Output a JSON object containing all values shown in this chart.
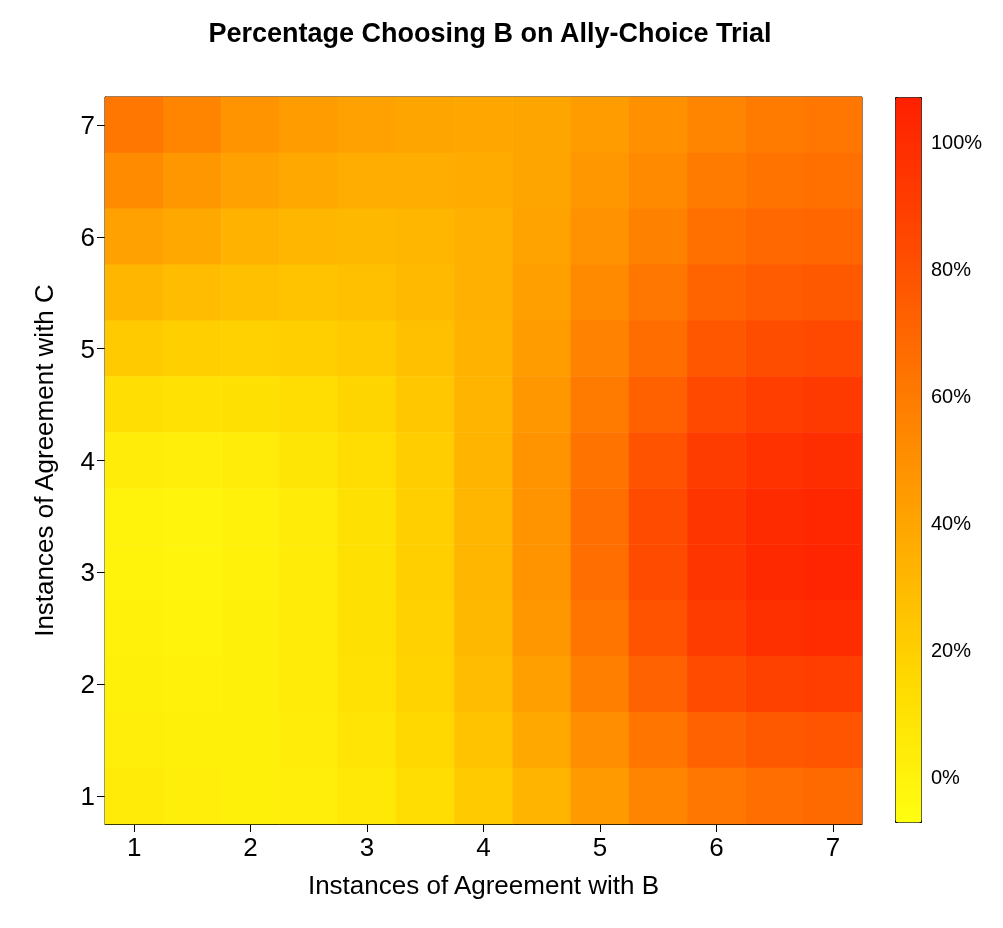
{
  "chart_data": {
    "type": "heatmap",
    "title": "Percentage Choosing B on Ally-Choice Trial",
    "xlabel": "Instances of Agreement with B",
    "ylabel": "Instances of Agreement with C",
    "categories": [
      "1",
      null,
      "2",
      null,
      "3",
      null,
      "4",
      null,
      "5",
      null,
      "6",
      null,
      "7"
    ],
    "y_categories": [
      "7",
      null,
      "6",
      null,
      "5",
      null,
      "4",
      null,
      "3",
      null,
      "2",
      null,
      "1"
    ],
    "cells": [
      [
        62,
        55,
        48,
        44,
        42,
        40,
        39,
        40,
        44,
        50,
        55,
        60,
        62
      ],
      [
        52,
        46,
        42,
        38,
        36,
        36,
        37,
        40,
        46,
        53,
        60,
        64,
        65
      ],
      [
        42,
        38,
        34,
        32,
        31,
        32,
        35,
        41,
        49,
        57,
        65,
        69,
        70
      ],
      [
        32,
        29,
        27,
        26,
        27,
        30,
        35,
        43,
        53,
        62,
        71,
        75,
        76
      ],
      [
        22,
        20,
        19,
        20,
        22,
        27,
        34,
        44,
        56,
        67,
        77,
        82,
        84
      ],
      [
        12,
        10,
        11,
        13,
        17,
        24,
        33,
        46,
        60,
        73,
        84,
        90,
        92
      ],
      [
        4,
        3,
        4,
        8,
        13,
        21,
        33,
        48,
        64,
        79,
        91,
        97,
        99
      ],
      [
        0,
        -1,
        1,
        5,
        11,
        20,
        32,
        48,
        66,
        83,
        95,
        101,
        103
      ],
      [
        0,
        -1,
        1,
        5,
        11,
        20,
        32,
        48,
        66,
        83,
        95,
        102,
        104
      ],
      [
        1,
        0,
        2,
        5,
        11,
        19,
        31,
        46,
        63,
        79,
        91,
        98,
        100
      ],
      [
        2,
        1,
        2,
        5,
        10,
        18,
        29,
        43,
        58,
        72,
        83,
        88,
        90
      ],
      [
        3,
        2,
        2,
        4,
        9,
        16,
        26,
        38,
        51,
        63,
        72,
        76,
        78
      ],
      [
        5,
        3,
        2,
        3,
        7,
        13,
        22,
        33,
        45,
        55,
        62,
        66,
        68
      ]
    ],
    "clim": [
      -7,
      107
    ],
    "cticks": [
      {
        "value": 0,
        "label": "0%"
      },
      {
        "value": 20,
        "label": "20%"
      },
      {
        "value": 40,
        "label": "40%"
      },
      {
        "value": 60,
        "label": "60%"
      },
      {
        "value": 80,
        "label": "80%"
      },
      {
        "value": 100,
        "label": "100%"
      }
    ]
  }
}
